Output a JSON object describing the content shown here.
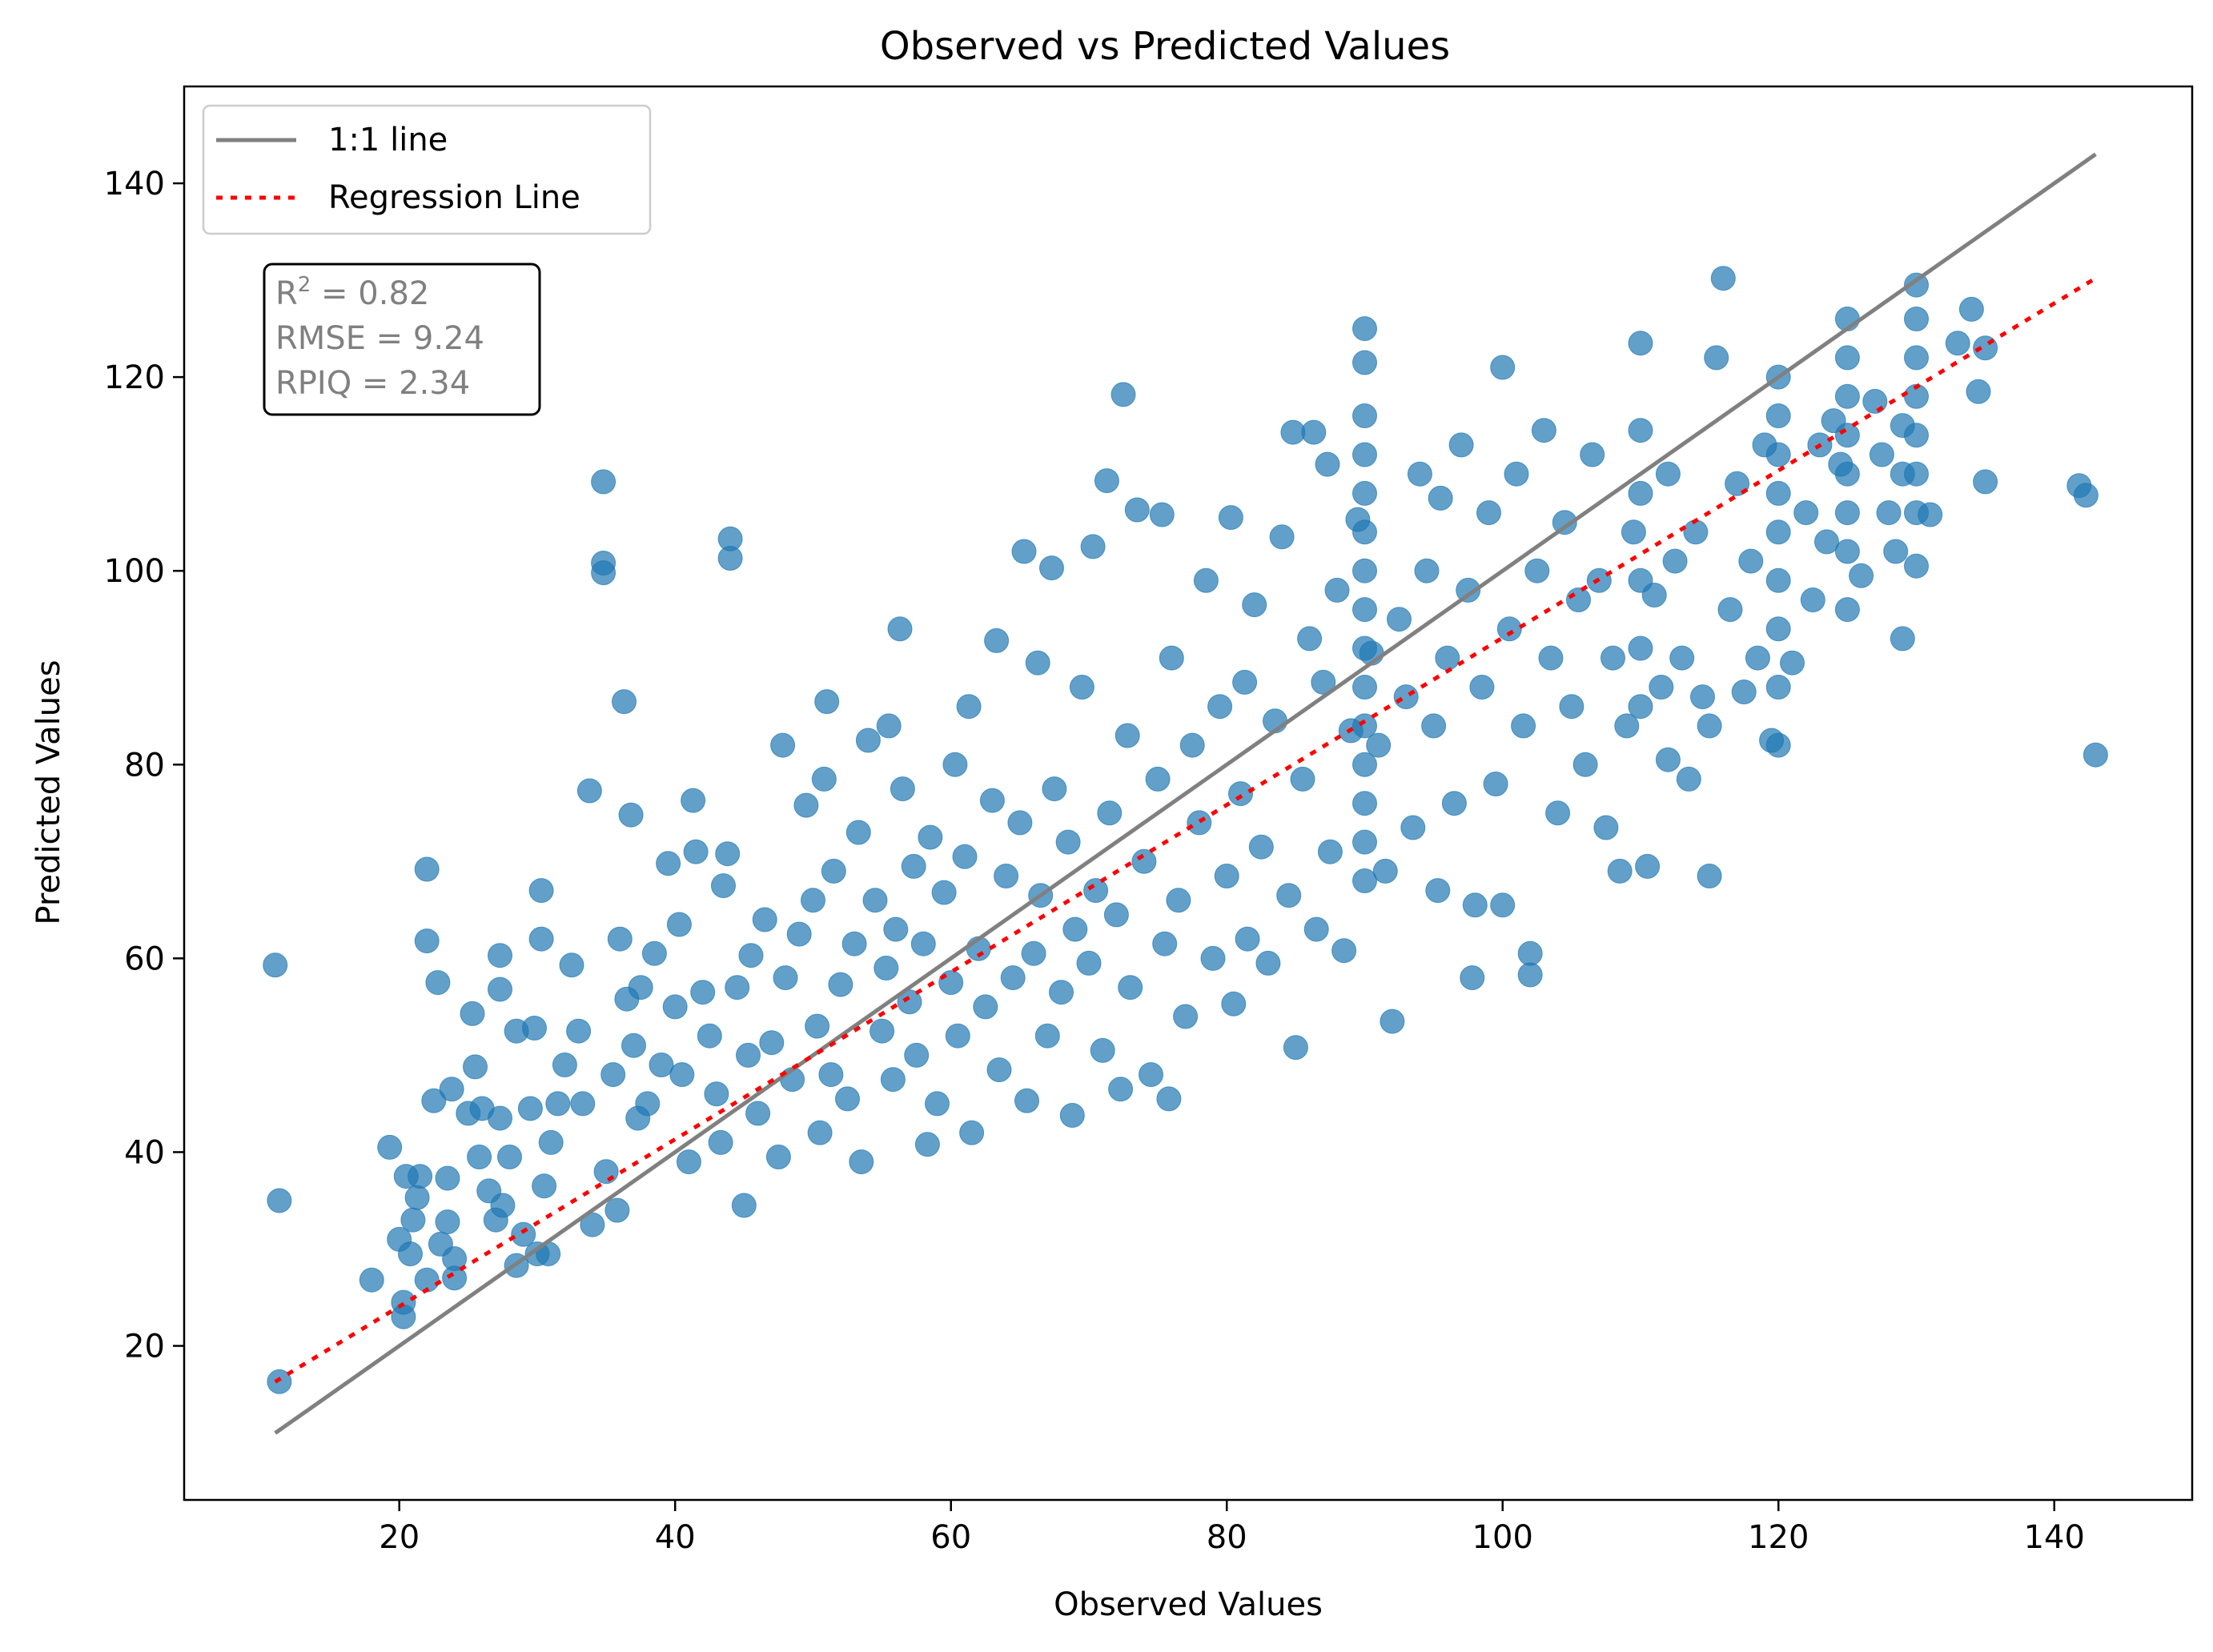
{
  "chart_data": {
    "type": "scatter",
    "title": "Observed vs Predicted Values",
    "xlabel": "Observed Values",
    "ylabel": "Predicted Values",
    "xlim": [
      4.4,
      150.0
    ],
    "ylim": [
      4.1,
      150.0
    ],
    "xticks": [
      20,
      40,
      60,
      80,
      100,
      120,
      140
    ],
    "yticks": [
      20,
      40,
      60,
      80,
      100,
      120,
      140
    ],
    "grid": false,
    "legend": {
      "placement": "upper-left",
      "entries": [
        {
          "label": "1:1 line",
          "color": "#808080",
          "style": "solid"
        },
        {
          "label": "Regression Line",
          "color": "#ff0000",
          "style": "dotted"
        }
      ]
    },
    "stats_box": {
      "r2_label": "R",
      "r2_sup": "2",
      "r2_value": " = 0.82",
      "rmse": "RMSE = 9.24",
      "rpiq": "RPIQ = 2.34"
    },
    "reference_line": {
      "name": "1:1 line",
      "x": [
        11,
        143
      ],
      "y": [
        11,
        143
      ]
    },
    "regression_line": {
      "name": "Regression Line",
      "x": [
        11,
        143
      ],
      "y": [
        16.3,
        130.2
      ]
    },
    "point_color": "#1f77b4",
    "point_opacity": 0.7,
    "points": [
      [
        11,
        59.3
      ],
      [
        11.3,
        35
      ],
      [
        11.3,
        16.3
      ],
      [
        18,
        26.8
      ],
      [
        19.3,
        40.5
      ],
      [
        20,
        31
      ],
      [
        20.3,
        23
      ],
      [
        20.3,
        24.5
      ],
      [
        20.5,
        37.5
      ],
      [
        20.8,
        29.5
      ],
      [
        21,
        33
      ],
      [
        21.3,
        35.3
      ],
      [
        21.5,
        37.5
      ],
      [
        22,
        26.8
      ],
      [
        22,
        69.2
      ],
      [
        22,
        61.8
      ],
      [
        22.5,
        45.3
      ],
      [
        22.8,
        57.5
      ],
      [
        23,
        30.5
      ],
      [
        23.5,
        32.8
      ],
      [
        23.5,
        37.3
      ],
      [
        23.8,
        46.5
      ],
      [
        24,
        27
      ],
      [
        24,
        29
      ],
      [
        25,
        44
      ],
      [
        25.3,
        54.3
      ],
      [
        25.5,
        48.8
      ],
      [
        25.8,
        39.5
      ],
      [
        26,
        44.5
      ],
      [
        26.5,
        36
      ],
      [
        27,
        33
      ],
      [
        27.3,
        43.5
      ],
      [
        27.3,
        56.8
      ],
      [
        27.3,
        60.3
      ],
      [
        27.5,
        34.5
      ],
      [
        28,
        39.5
      ],
      [
        28.5,
        28.3
      ],
      [
        28.5,
        52.5
      ],
      [
        29,
        31.5
      ],
      [
        29.5,
        44.5
      ],
      [
        29.8,
        52.8
      ],
      [
        30,
        29.5
      ],
      [
        30.3,
        67
      ],
      [
        30.3,
        62
      ],
      [
        30.5,
        36.5
      ],
      [
        30.8,
        29.5
      ],
      [
        31,
        41
      ],
      [
        31.5,
        45
      ],
      [
        32,
        49
      ],
      [
        32.5,
        59.3
      ],
      [
        33,
        52.5
      ],
      [
        33.3,
        45
      ],
      [
        33.8,
        77.3
      ],
      [
        34,
        32.5
      ],
      [
        34.8,
        109.2
      ],
      [
        34.8,
        100.8
      ],
      [
        34.8,
        99.8
      ],
      [
        35,
        38
      ],
      [
        35.5,
        48
      ],
      [
        35.8,
        34
      ],
      [
        36,
        62
      ],
      [
        36.3,
        86.5
      ],
      [
        36.5,
        55.8
      ],
      [
        36.8,
        74.8
      ],
      [
        37,
        51
      ],
      [
        37.3,
        43.5
      ],
      [
        37.5,
        57
      ],
      [
        38,
        45
      ],
      [
        38.5,
        60.5
      ],
      [
        39,
        49
      ],
      [
        39.5,
        69.8
      ],
      [
        40,
        55
      ],
      [
        40.3,
        63.5
      ],
      [
        40.5,
        48
      ],
      [
        41,
        39
      ],
      [
        41.3,
        76.3
      ],
      [
        41.5,
        71
      ],
      [
        42,
        56.5
      ],
      [
        42.5,
        52
      ],
      [
        43,
        46
      ],
      [
        43.3,
        41
      ],
      [
        43.5,
        67.5
      ],
      [
        43.8,
        70.8
      ],
      [
        44,
        103.3
      ],
      [
        44,
        101.3
      ],
      [
        44.5,
        57
      ],
      [
        45,
        34.5
      ],
      [
        45.3,
        50
      ],
      [
        45.5,
        60.3
      ],
      [
        46,
        44
      ],
      [
        46.5,
        64
      ],
      [
        47,
        51.3
      ],
      [
        47.5,
        39.5
      ],
      [
        47.8,
        82
      ],
      [
        48,
        58
      ],
      [
        48.5,
        47.5
      ],
      [
        49,
        62.5
      ],
      [
        49.5,
        75.8
      ],
      [
        50,
        66
      ],
      [
        50.3,
        53
      ],
      [
        50.5,
        42
      ],
      [
        50.8,
        78.5
      ],
      [
        51,
        86.5
      ],
      [
        51.3,
        48
      ],
      [
        51.5,
        69
      ],
      [
        52,
        57.3
      ],
      [
        52.5,
        45.5
      ],
      [
        53,
        61.5
      ],
      [
        53.3,
        73
      ],
      [
        53.5,
        39
      ],
      [
        54,
        82.5
      ],
      [
        54.5,
        66
      ],
      [
        55,
        52.5
      ],
      [
        55.3,
        59
      ],
      [
        55.5,
        84
      ],
      [
        55.8,
        47.5
      ],
      [
        56,
        63
      ],
      [
        56.3,
        94
      ],
      [
        56.5,
        77.5
      ],
      [
        57,
        55.5
      ],
      [
        57.3,
        69.5
      ],
      [
        57.5,
        50
      ],
      [
        58,
        61.5
      ],
      [
        58.3,
        40.8
      ],
      [
        58.5,
        72.5
      ],
      [
        59,
        45
      ],
      [
        59.5,
        66.8
      ],
      [
        60,
        57.5
      ],
      [
        60.3,
        80
      ],
      [
        60.5,
        52
      ],
      [
        61,
        70.5
      ],
      [
        61.3,
        86
      ],
      [
        61.5,
        42
      ],
      [
        62,
        61
      ],
      [
        62.5,
        55
      ],
      [
        63,
        76.3
      ],
      [
        63.3,
        92.8
      ],
      [
        63.5,
        48.5
      ],
      [
        64,
        68.5
      ],
      [
        64.5,
        58
      ],
      [
        65,
        74
      ],
      [
        65.3,
        102
      ],
      [
        65.5,
        45.3
      ],
      [
        66,
        60.5
      ],
      [
        66.3,
        90.5
      ],
      [
        66.5,
        66.5
      ],
      [
        67,
        52
      ],
      [
        67.3,
        100.3
      ],
      [
        67.5,
        77.5
      ],
      [
        68,
        56.5
      ],
      [
        68.5,
        72
      ],
      [
        68.8,
        43.8
      ],
      [
        69,
        63
      ],
      [
        69.5,
        88
      ],
      [
        70,
        59.5
      ],
      [
        70.3,
        102.5
      ],
      [
        70.5,
        67
      ],
      [
        71,
        50.5
      ],
      [
        71.3,
        109.3
      ],
      [
        71.5,
        75
      ],
      [
        72,
        64.5
      ],
      [
        72.3,
        46.5
      ],
      [
        72.5,
        118.2
      ],
      [
        72.8,
        83
      ],
      [
        73,
        57
      ],
      [
        73.5,
        106.3
      ],
      [
        74,
        70
      ],
      [
        74.5,
        48
      ],
      [
        75,
        78.5
      ],
      [
        75.3,
        105.8
      ],
      [
        75.5,
        61.5
      ],
      [
        75.8,
        45.5
      ],
      [
        76,
        91
      ],
      [
        76.5,
        66
      ],
      [
        77,
        54
      ],
      [
        77.5,
        82
      ],
      [
        78,
        74
      ],
      [
        78.5,
        99
      ],
      [
        79,
        60
      ],
      [
        79.5,
        86
      ],
      [
        80,
        68.5
      ],
      [
        80.3,
        105.5
      ],
      [
        80.5,
        55.3
      ],
      [
        81,
        77
      ],
      [
        81.3,
        88.5
      ],
      [
        81.5,
        62
      ],
      [
        82,
        96.5
      ],
      [
        82.5,
        71.5
      ],
      [
        83,
        59.5
      ],
      [
        83.5,
        84.5
      ],
      [
        84,
        103.5
      ],
      [
        84.5,
        66.5
      ],
      [
        84.8,
        114.3
      ],
      [
        85,
        50.8
      ],
      [
        85.5,
        78.5
      ],
      [
        86,
        93
      ],
      [
        86.3,
        114.3
      ],
      [
        86.5,
        63
      ],
      [
        87,
        88.5
      ],
      [
        87.3,
        111
      ],
      [
        87.5,
        71
      ],
      [
        88,
        98
      ],
      [
        88.5,
        60.8
      ],
      [
        89,
        83.5
      ],
      [
        89.5,
        105.3
      ],
      [
        90,
        125
      ],
      [
        90,
        121.5
      ],
      [
        90,
        116
      ],
      [
        90,
        112
      ],
      [
        90,
        108
      ],
      [
        90,
        104
      ],
      [
        90,
        100
      ],
      [
        90,
        96
      ],
      [
        90,
        92
      ],
      [
        90,
        88
      ],
      [
        90,
        84
      ],
      [
        90,
        80
      ],
      [
        90,
        76
      ],
      [
        90,
        72
      ],
      [
        90,
        68
      ],
      [
        90.5,
        91.5
      ],
      [
        91,
        82
      ],
      [
        91.5,
        69
      ],
      [
        92,
        53.5
      ],
      [
        92.5,
        95
      ],
      [
        93,
        87
      ],
      [
        93.5,
        73.5
      ],
      [
        94,
        110
      ],
      [
        94.5,
        100
      ],
      [
        95,
        84
      ],
      [
        95.3,
        67
      ],
      [
        95.5,
        107.5
      ],
      [
        96,
        91
      ],
      [
        96.5,
        76
      ],
      [
        97,
        113
      ],
      [
        97.5,
        98
      ],
      [
        97.8,
        58
      ],
      [
        98,
        65.5
      ],
      [
        98.5,
        88
      ],
      [
        99,
        106
      ],
      [
        99.5,
        78
      ],
      [
        100,
        121
      ],
      [
        100,
        65.5
      ],
      [
        100.5,
        94
      ],
      [
        101,
        110
      ],
      [
        101.5,
        84
      ],
      [
        102,
        60.5
      ],
      [
        102,
        58.3
      ],
      [
        102.5,
        100
      ],
      [
        103,
        114.5
      ],
      [
        103.5,
        91
      ],
      [
        104,
        75
      ],
      [
        104.5,
        105
      ],
      [
        105,
        86
      ],
      [
        105.5,
        97
      ],
      [
        106,
        80
      ],
      [
        106.5,
        112
      ],
      [
        107,
        99
      ],
      [
        107.5,
        73.5
      ],
      [
        108,
        91
      ],
      [
        108.5,
        69
      ],
      [
        109,
        84
      ],
      [
        109.5,
        104
      ],
      [
        110,
        123.5
      ],
      [
        110,
        114.5
      ],
      [
        110,
        108
      ],
      [
        110,
        99
      ],
      [
        110,
        92
      ],
      [
        110,
        86
      ],
      [
        110.5,
        69.5
      ],
      [
        111,
        97.5
      ],
      [
        111.5,
        88
      ],
      [
        112,
        110
      ],
      [
        112,
        80.5
      ],
      [
        112.5,
        101
      ],
      [
        113,
        91
      ],
      [
        113.5,
        78.5
      ],
      [
        114,
        104
      ],
      [
        114.5,
        87
      ],
      [
        115,
        68.5
      ],
      [
        115,
        84
      ],
      [
        115.5,
        122
      ],
      [
        116,
        130.2
      ],
      [
        116.5,
        96
      ],
      [
        117,
        109
      ],
      [
        117.5,
        87.5
      ],
      [
        118,
        101
      ],
      [
        118.5,
        91
      ],
      [
        119,
        113
      ],
      [
        119.5,
        82.5
      ],
      [
        120,
        120
      ],
      [
        120,
        116
      ],
      [
        120,
        112
      ],
      [
        120,
        108
      ],
      [
        120,
        104
      ],
      [
        120,
        99
      ],
      [
        120,
        94
      ],
      [
        120,
        88
      ],
      [
        120,
        82
      ],
      [
        121,
        90.5
      ],
      [
        122,
        106
      ],
      [
        122.5,
        97
      ],
      [
        123,
        113
      ],
      [
        123.5,
        103
      ],
      [
        124,
        115.5
      ],
      [
        124.5,
        111
      ],
      [
        125,
        126
      ],
      [
        125,
        122
      ],
      [
        125,
        118
      ],
      [
        125,
        114
      ],
      [
        125,
        110
      ],
      [
        125,
        106
      ],
      [
        125,
        102
      ],
      [
        125,
        96
      ],
      [
        126,
        99.5
      ],
      [
        127,
        117.5
      ],
      [
        127.5,
        112
      ],
      [
        128,
        106
      ],
      [
        128.5,
        102
      ],
      [
        129,
        93
      ],
      [
        129,
        110
      ],
      [
        129,
        115
      ],
      [
        130,
        129.5
      ],
      [
        130,
        126
      ],
      [
        130,
        122
      ],
      [
        130,
        118
      ],
      [
        130,
        114
      ],
      [
        130,
        110
      ],
      [
        130,
        106
      ],
      [
        130,
        100.5
      ],
      [
        131,
        105.8
      ],
      [
        133,
        123.5
      ],
      [
        134,
        127
      ],
      [
        134.5,
        118.5
      ],
      [
        135,
        109.2
      ],
      [
        135,
        123
      ],
      [
        141.8,
        108.8
      ],
      [
        142.3,
        107.8
      ],
      [
        143,
        81
      ]
    ]
  }
}
